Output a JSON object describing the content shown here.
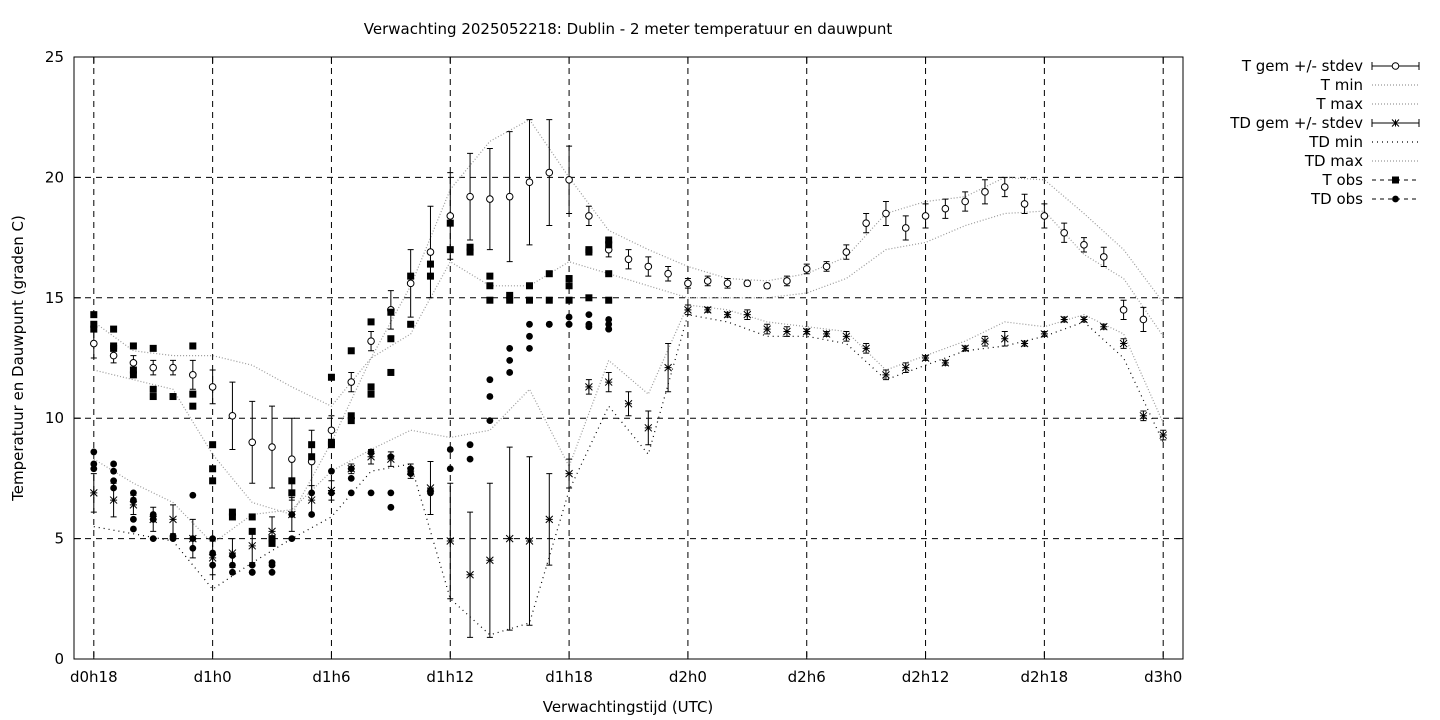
{
  "chart_data": {
    "type": "scatter",
    "title": "Verwachting 2025052218: Dublin - 2 meter temperatuur en dauwpunt",
    "xlabel": "Verwachtingstijd (UTC)",
    "ylabel": "Temperatuur en Dauwpunt (graden C)",
    "xlim": [
      -1,
      55
    ],
    "ylim": [
      0,
      25
    ],
    "x_ticks": [
      {
        "label": "d0h18",
        "x": 0
      },
      {
        "label": "d1h0",
        "x": 6
      },
      {
        "label": "d1h6",
        "x": 12
      },
      {
        "label": "d1h12",
        "x": 18
      },
      {
        "label": "d1h18",
        "x": 24
      },
      {
        "label": "d2h0",
        "x": 30
      },
      {
        "label": "d2h6",
        "x": 36
      },
      {
        "label": "d2h12",
        "x": 42
      },
      {
        "label": "d2h18",
        "x": 48
      },
      {
        "label": "d3h0",
        "x": 54
      }
    ],
    "y_ticks": [
      0,
      5,
      10,
      15,
      20,
      25
    ],
    "grid": true,
    "legend_position": "outside-right",
    "series": [
      {
        "name": "T gem +/- stdev",
        "style": "errorbar-open-circle",
        "x": [
          0,
          1,
          2,
          3,
          4,
          5,
          6,
          7,
          8,
          9,
          10,
          11,
          12,
          13,
          14,
          15,
          16,
          17,
          18,
          19,
          20,
          21,
          22,
          23,
          24,
          25,
          26,
          27,
          28,
          29,
          30,
          31,
          32,
          33,
          34,
          35,
          36,
          37,
          38,
          39,
          40,
          41,
          42,
          43,
          44,
          45,
          46,
          47,
          48,
          49,
          50,
          51,
          52,
          53,
          54
        ],
        "y": [
          13.1,
          12.6,
          12.3,
          12.1,
          12.1,
          11.8,
          11.3,
          10.1,
          9.0,
          8.8,
          8.3,
          8.2,
          9.5,
          11.5,
          13.2,
          14.5,
          15.6,
          16.9,
          18.4,
          19.2,
          19.1,
          19.2,
          19.8,
          20.2,
          19.9,
          18.4,
          17.0,
          16.6,
          16.3,
          16.0,
          15.6,
          15.7,
          15.6,
          15.6,
          15.5,
          15.7,
          16.2,
          16.3,
          16.9,
          18.1,
          18.5,
          17.9,
          18.4,
          18.7,
          19.0,
          19.4,
          19.6,
          18.9,
          18.4,
          17.7,
          17.2,
          16.7,
          14.5,
          14.1,
          null
        ],
        "err": [
          0.6,
          0.3,
          0.3,
          0.3,
          0.3,
          0.6,
          0.7,
          1.4,
          1.7,
          1.7,
          1.7,
          1.3,
          0.6,
          0.4,
          0.4,
          0.8,
          1.4,
          1.9,
          1.8,
          1.8,
          2.1,
          2.7,
          2.6,
          2.2,
          1.4,
          0.4,
          0.3,
          0.4,
          0.4,
          0.3,
          0.2,
          0.2,
          0.2,
          0.1,
          0.1,
          0.2,
          0.2,
          0.2,
          0.3,
          0.4,
          0.5,
          0.5,
          0.5,
          0.4,
          0.4,
          0.5,
          0.4,
          0.4,
          0.5,
          0.4,
          0.3,
          0.4,
          0.4,
          0.5,
          null
        ]
      },
      {
        "name": "T min",
        "style": "dotted-line",
        "x": [
          0,
          2,
          4,
          6,
          8,
          10,
          12,
          14,
          16,
          18,
          20,
          22,
          24,
          26,
          28,
          30,
          32,
          34,
          36,
          38,
          40,
          42,
          44,
          46,
          48,
          50,
          52,
          54
        ],
        "y": [
          12.0,
          11.6,
          11.2,
          8.5,
          6.5,
          6.0,
          9.0,
          12.5,
          13.5,
          16.5,
          15.5,
          15.5,
          16.5,
          16.0,
          15.5,
          15.0,
          15.0,
          15.0,
          15.2,
          15.8,
          17.0,
          17.3,
          18.0,
          18.5,
          18.6,
          16.8,
          15.8,
          13.4
        ]
      },
      {
        "name": "T max",
        "style": "dotted-line",
        "x": [
          0,
          2,
          4,
          6,
          8,
          10,
          12,
          14,
          16,
          18,
          20,
          22,
          24,
          26,
          28,
          30,
          32,
          34,
          36,
          38,
          40,
          42,
          44,
          46,
          48,
          50,
          52,
          54
        ],
        "y": [
          14.0,
          12.8,
          12.6,
          12.6,
          12.2,
          11.3,
          10.5,
          12.5,
          15.5,
          19.5,
          21.5,
          22.4,
          20.0,
          17.8,
          17.0,
          16.3,
          15.8,
          15.7,
          16.0,
          16.7,
          18.5,
          19.0,
          19.2,
          20.0,
          19.9,
          18.5,
          17.0,
          14.8
        ]
      },
      {
        "name": "TD gem +/- stdev",
        "style": "errorbar-star",
        "x": [
          0,
          1,
          2,
          3,
          4,
          5,
          6,
          7,
          8,
          9,
          10,
          11,
          12,
          13,
          14,
          15,
          16,
          17,
          18,
          19,
          20,
          21,
          22,
          23,
          24,
          25,
          26,
          27,
          28,
          29,
          30,
          31,
          32,
          33,
          34,
          35,
          36,
          37,
          38,
          39,
          40,
          41,
          42,
          43,
          44,
          45,
          46,
          47,
          48,
          49,
          50,
          51,
          52,
          53,
          54
        ],
        "y": [
          6.9,
          6.6,
          6.4,
          5.8,
          5.8,
          5.0,
          4.2,
          4.4,
          4.7,
          5.3,
          6.0,
          6.6,
          7.0,
          7.9,
          8.4,
          8.3,
          7.8,
          7.1,
          4.9,
          3.5,
          4.1,
          5.0,
          4.9,
          5.8,
          7.7,
          11.3,
          11.5,
          10.6,
          9.6,
          12.1,
          14.5,
          14.5,
          14.3,
          14.3,
          13.7,
          13.6,
          13.6,
          13.5,
          13.4,
          12.9,
          11.8,
          12.1,
          12.5,
          12.3,
          12.9,
          13.2,
          13.3,
          13.1,
          13.5,
          14.1,
          14.1,
          13.8,
          13.1,
          10.1,
          9.3
        ],
        "err": [
          0.8,
          0.7,
          0.4,
          0.5,
          0.6,
          0.8,
          0.7,
          0.6,
          0.7,
          0.6,
          0.7,
          0.6,
          0.4,
          0.2,
          0.3,
          0.3,
          0.3,
          1.1,
          2.4,
          2.6,
          3.2,
          3.8,
          3.5,
          1.9,
          0.6,
          0.3,
          0.4,
          0.5,
          0.7,
          1.0,
          0.2,
          0.1,
          0.1,
          0.2,
          0.2,
          0.2,
          0.1,
          0.1,
          0.2,
          0.2,
          0.2,
          0.2,
          0.1,
          0.1,
          0.1,
          0.2,
          0.3,
          0.1,
          0.1,
          0.1,
          0.1,
          0.1,
          0.2,
          0.2,
          0.2
        ]
      },
      {
        "name": "TD min",
        "style": "dotted-line-sparse",
        "x": [
          0,
          2,
          4,
          6,
          8,
          10,
          12,
          14,
          16,
          18,
          20,
          22,
          24,
          26,
          28,
          30,
          32,
          34,
          36,
          38,
          40,
          42,
          44,
          46,
          48,
          50,
          52,
          54
        ],
        "y": [
          5.5,
          5.2,
          4.9,
          2.9,
          4.0,
          5.0,
          5.9,
          7.8,
          8.1,
          2.5,
          1.0,
          1.5,
          7.0,
          10.5,
          8.5,
          14.3,
          14.0,
          13.4,
          13.4,
          13.1,
          11.6,
          12.2,
          12.8,
          13.0,
          13.4,
          14.0,
          12.5,
          9.0
        ]
      },
      {
        "name": "TD max",
        "style": "dotted-line",
        "x": [
          0,
          2,
          4,
          6,
          8,
          10,
          12,
          14,
          16,
          18,
          20,
          22,
          24,
          26,
          28,
          30,
          32,
          34,
          36,
          38,
          40,
          42,
          44,
          46,
          48,
          50,
          52,
          54
        ],
        "y": [
          8.3,
          7.3,
          6.5,
          4.8,
          6.0,
          6.2,
          7.8,
          8.7,
          9.5,
          9.2,
          9.5,
          11.2,
          8.0,
          12.4,
          11.0,
          14.7,
          14.5,
          14.0,
          13.8,
          13.6,
          12.0,
          12.6,
          13.2,
          14.0,
          13.8,
          14.3,
          13.5,
          9.8
        ]
      },
      {
        "name": "T obs",
        "style": "filled-square",
        "x": [
          0,
          0,
          0,
          1,
          1,
          1,
          2,
          2,
          2,
          3,
          3,
          3,
          4,
          5,
          5,
          5,
          6,
          6,
          6,
          7,
          7,
          8,
          8,
          9,
          9,
          10,
          10,
          11,
          11,
          12,
          12,
          12,
          13,
          13,
          13,
          14,
          14,
          14,
          15,
          15,
          15,
          16,
          16,
          17,
          17,
          18,
          18,
          19,
          19,
          20,
          20,
          20,
          21,
          21,
          22,
          22,
          23,
          23,
          24,
          24,
          24,
          25,
          25,
          25,
          26,
          26,
          26,
          26
        ],
        "y": [
          14.3,
          13.9,
          13.7,
          13.7,
          13.0,
          12.9,
          13.0,
          12.0,
          11.8,
          12.9,
          11.2,
          10.9,
          10.9,
          13.0,
          11.0,
          10.5,
          8.9,
          7.9,
          7.4,
          6.1,
          5.9,
          5.9,
          5.3,
          5.0,
          4.8,
          7.4,
          6.9,
          8.9,
          8.4,
          11.7,
          9.0,
          8.9,
          12.8,
          10.1,
          9.9,
          14.0,
          11.3,
          11.0,
          14.4,
          13.3,
          11.9,
          15.9,
          13.9,
          16.4,
          15.9,
          18.1,
          17.0,
          17.1,
          16.9,
          15.9,
          15.5,
          14.9,
          15.1,
          14.9,
          15.5,
          14.9,
          16.0,
          14.9,
          15.8,
          15.5,
          14.9,
          17.0,
          16.9,
          15.0,
          17.4,
          17.2,
          16.0,
          14.9
        ]
      },
      {
        "name": "TD obs",
        "style": "filled-circle",
        "x": [
          0,
          0,
          0,
          1,
          1,
          1,
          1,
          2,
          2,
          2,
          2,
          3,
          3,
          3,
          4,
          4,
          5,
          5,
          5,
          6,
          6,
          6,
          7,
          7,
          7,
          8,
          8,
          8,
          9,
          9,
          9,
          10,
          10,
          11,
          11,
          12,
          12,
          13,
          13,
          13,
          14,
          14,
          15,
          15,
          15,
          16,
          16,
          17,
          17,
          18,
          18,
          19,
          19,
          20,
          20,
          20,
          21,
          21,
          21,
          22,
          22,
          22,
          23,
          23,
          24,
          24,
          24,
          25,
          25,
          25,
          26,
          26,
          26,
          26
        ],
        "y": [
          8.6,
          8.1,
          7.9,
          8.1,
          7.8,
          7.4,
          7.1,
          6.9,
          6.6,
          5.8,
          5.4,
          6.0,
          5.8,
          5.0,
          5.1,
          5.0,
          6.8,
          5.0,
          4.6,
          5.0,
          4.4,
          3.9,
          4.3,
          3.9,
          3.6,
          3.9,
          3.6,
          3.6,
          4.0,
          3.9,
          3.6,
          6.0,
          5.0,
          6.9,
          6.0,
          7.8,
          6.9,
          7.9,
          7.5,
          6.9,
          8.6,
          6.9,
          8.4,
          6.9,
          6.3,
          7.9,
          7.7,
          7.0,
          6.9,
          8.7,
          7.9,
          8.9,
          8.3,
          11.6,
          10.9,
          9.9,
          12.9,
          12.4,
          11.9,
          13.9,
          13.4,
          12.9,
          13.9,
          13.9,
          14.2,
          13.9,
          13.9,
          14.3,
          13.9,
          13.8,
          14.1,
          13.9,
          13.7,
          13.7
        ]
      }
    ]
  }
}
